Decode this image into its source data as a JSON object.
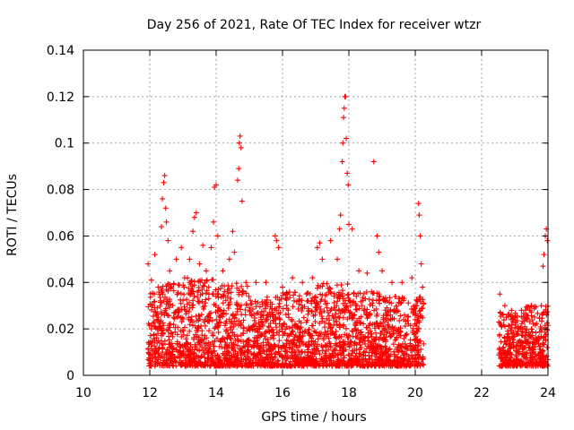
{
  "chart_data": {
    "type": "scatter",
    "title": "Day 256 of 2021, Rate Of TEC Index for receiver wtzr",
    "xlabel": "GPS time / hours",
    "ylabel": "ROTI / TECUs",
    "xlim": [
      10,
      24
    ],
    "ylim": [
      0,
      0.14
    ],
    "xticks": [
      "10",
      "12",
      "14",
      "16",
      "18",
      "20",
      "22",
      "24"
    ],
    "yticks": [
      "0",
      "0.02",
      "0.04",
      "0.06",
      "0.08",
      "0.1",
      "0.12",
      "0.14"
    ],
    "grid": true,
    "marker": "plus",
    "color": "#ff0000",
    "series": [
      {
        "name": "ROTI",
        "points": [
          [
            11.95,
            0.048
          ],
          [
            12.05,
            0.041
          ],
          [
            12.15,
            0.052
          ],
          [
            12.25,
            0.038
          ],
          [
            12.35,
            0.064
          ],
          [
            12.38,
            0.076
          ],
          [
            12.42,
            0.083
          ],
          [
            12.45,
            0.086
          ],
          [
            12.48,
            0.072
          ],
          [
            12.5,
            0.066
          ],
          [
            12.55,
            0.058
          ],
          [
            12.6,
            0.045
          ],
          [
            12.8,
            0.05
          ],
          [
            12.95,
            0.055
          ],
          [
            13.05,
            0.042
          ],
          [
            13.2,
            0.05
          ],
          [
            13.3,
            0.062
          ],
          [
            13.35,
            0.068
          ],
          [
            13.4,
            0.07
          ],
          [
            13.5,
            0.048
          ],
          [
            13.6,
            0.056
          ],
          [
            13.7,
            0.045
          ],
          [
            13.85,
            0.055
          ],
          [
            13.92,
            0.066
          ],
          [
            13.95,
            0.081
          ],
          [
            14.0,
            0.082
          ],
          [
            14.05,
            0.06
          ],
          [
            14.2,
            0.045
          ],
          [
            14.4,
            0.05
          ],
          [
            14.5,
            0.062
          ],
          [
            14.55,
            0.053
          ],
          [
            14.65,
            0.084
          ],
          [
            14.68,
            0.089
          ],
          [
            14.7,
            0.1
          ],
          [
            14.72,
            0.103
          ],
          [
            14.75,
            0.098
          ],
          [
            14.78,
            0.075
          ],
          [
            14.9,
            0.04
          ],
          [
            15.2,
            0.04
          ],
          [
            15.5,
            0.04
          ],
          [
            15.78,
            0.06
          ],
          [
            15.82,
            0.058
          ],
          [
            15.88,
            0.055
          ],
          [
            16.0,
            0.038
          ],
          [
            16.3,
            0.042
          ],
          [
            16.6,
            0.04
          ],
          [
            16.9,
            0.042
          ],
          [
            17.05,
            0.055
          ],
          [
            17.12,
            0.057
          ],
          [
            17.2,
            0.05
          ],
          [
            17.45,
            0.058
          ],
          [
            17.65,
            0.05
          ],
          [
            17.72,
            0.063
          ],
          [
            17.75,
            0.069
          ],
          [
            17.8,
            0.092
          ],
          [
            17.82,
            0.1
          ],
          [
            17.84,
            0.111
          ],
          [
            17.86,
            0.115
          ],
          [
            17.88,
            0.12
          ],
          [
            17.9,
            0.12
          ],
          [
            17.92,
            0.102
          ],
          [
            17.95,
            0.087
          ],
          [
            17.98,
            0.082
          ],
          [
            18.0,
            0.065
          ],
          [
            18.1,
            0.063
          ],
          [
            18.3,
            0.045
          ],
          [
            18.55,
            0.044
          ],
          [
            18.75,
            0.092
          ],
          [
            18.85,
            0.06
          ],
          [
            18.9,
            0.053
          ],
          [
            19.0,
            0.045
          ],
          [
            19.3,
            0.04
          ],
          [
            19.6,
            0.04
          ],
          [
            19.9,
            0.042
          ],
          [
            20.1,
            0.074
          ],
          [
            20.12,
            0.069
          ],
          [
            20.15,
            0.06
          ],
          [
            20.18,
            0.048
          ],
          [
            20.22,
            0.038
          ],
          [
            22.55,
            0.035
          ],
          [
            22.7,
            0.03
          ],
          [
            22.9,
            0.028
          ],
          [
            23.2,
            0.028
          ],
          [
            23.5,
            0.03
          ],
          [
            23.8,
            0.03
          ],
          [
            23.85,
            0.047
          ],
          [
            23.88,
            0.052
          ],
          [
            23.92,
            0.06
          ],
          [
            23.95,
            0.063
          ],
          [
            23.98,
            0.058
          ]
        ],
        "bands": [
          {
            "x": [
              11.95,
              12.3
            ],
            "y": [
              0.004,
              0.036
            ],
            "density": 10
          },
          {
            "x": [
              12.3,
              13.0
            ],
            "y": [
              0.004,
              0.04
            ],
            "density": 10
          },
          {
            "x": [
              13.0,
              14.0
            ],
            "y": [
              0.004,
              0.042
            ],
            "density": 10
          },
          {
            "x": [
              14.0,
              15.0
            ],
            "y": [
              0.004,
              0.04
            ],
            "density": 10
          },
          {
            "x": [
              15.0,
              16.0
            ],
            "y": [
              0.004,
              0.034
            ],
            "density": 10
          },
          {
            "x": [
              16.0,
              17.0
            ],
            "y": [
              0.004,
              0.036
            ],
            "density": 10
          },
          {
            "x": [
              17.0,
              18.0
            ],
            "y": [
              0.004,
              0.04
            ],
            "density": 10
          },
          {
            "x": [
              18.0,
              19.0
            ],
            "y": [
              0.004,
              0.036
            ],
            "density": 10
          },
          {
            "x": [
              19.0,
              20.25
            ],
            "y": [
              0.004,
              0.034
            ],
            "density": 10
          },
          {
            "x": [
              22.5,
              23.2
            ],
            "y": [
              0.004,
              0.028
            ],
            "density": 10
          },
          {
            "x": [
              23.2,
              24.0
            ],
            "y": [
              0.004,
              0.03
            ],
            "density": 10
          }
        ]
      }
    ]
  }
}
